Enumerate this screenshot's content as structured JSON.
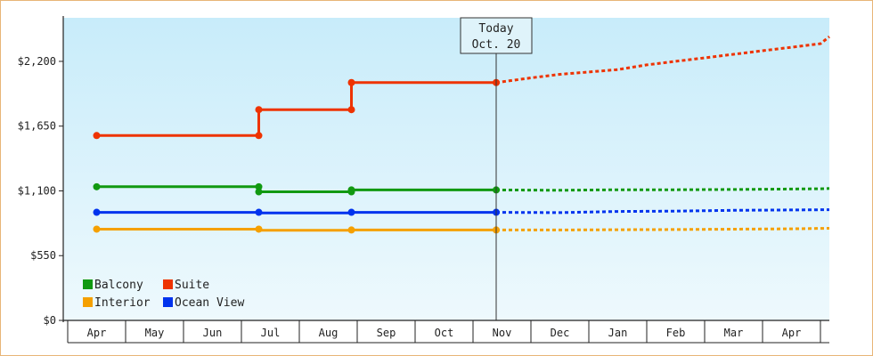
{
  "chart_data": {
    "type": "line",
    "x": [
      "Apr",
      "May",
      "Jun",
      "Jul",
      "Aug",
      "Sep",
      "Oct",
      "Nov",
      "Dec",
      "Jan",
      "Feb",
      "Mar",
      "Apr"
    ],
    "ylim": [
      0,
      2570
    ],
    "yticks": [
      "$0",
      "$550",
      "$1,100",
      "$1,650",
      "$2,200"
    ],
    "ytick_values": [
      0,
      550,
      1100,
      1650,
      2200
    ],
    "grid": false,
    "legend_position": "bottom-left",
    "today": {
      "line1": "Today",
      "line2": "Oct. 20",
      "x": 6.9
    },
    "series": [
      {
        "name": "Balcony",
        "color": "#119911",
        "actual": [
          [
            0,
            1135
          ],
          [
            2.8,
            1135
          ],
          [
            2.8,
            1092
          ],
          [
            4.4,
            1092
          ],
          [
            4.4,
            1108
          ],
          [
            6.9,
            1108
          ]
        ],
        "forecast": [
          [
            6.9,
            1108
          ],
          [
            8.0,
            1105
          ],
          [
            9.0,
            1110
          ],
          [
            10.0,
            1110
          ],
          [
            11.2,
            1113
          ],
          [
            12.5,
            1118
          ],
          [
            13.3,
            1120
          ]
        ],
        "markers": [
          [
            0,
            1135
          ],
          [
            2.8,
            1135
          ],
          [
            2.8,
            1092
          ],
          [
            4.4,
            1092
          ],
          [
            4.4,
            1108
          ],
          [
            6.9,
            1108
          ]
        ]
      },
      {
        "name": "Suite",
        "color": "#ee3300",
        "actual": [
          [
            0,
            1570
          ],
          [
            2.8,
            1570
          ],
          [
            2.8,
            1790
          ],
          [
            4.4,
            1790
          ],
          [
            4.4,
            2020
          ],
          [
            6.9,
            2020
          ]
        ],
        "forecast": [
          [
            6.9,
            2020
          ],
          [
            7.5,
            2060
          ],
          [
            8.0,
            2090
          ],
          [
            8.5,
            2110
          ],
          [
            9.0,
            2130
          ],
          [
            9.5,
            2170
          ],
          [
            10.0,
            2200
          ],
          [
            10.5,
            2230
          ],
          [
            11.0,
            2260
          ],
          [
            11.5,
            2290
          ],
          [
            12.0,
            2320
          ],
          [
            12.5,
            2350
          ],
          [
            13.3,
            2410
          ]
        ],
        "markers": [
          [
            0,
            1570
          ],
          [
            2.8,
            1570
          ],
          [
            2.8,
            1790
          ],
          [
            4.4,
            1790
          ],
          [
            4.4,
            2020
          ],
          [
            6.9,
            2020
          ]
        ]
      },
      {
        "name": "Interior",
        "color": "#f5a000",
        "actual": [
          [
            0,
            775
          ],
          [
            2.8,
            775
          ],
          [
            2.8,
            765
          ],
          [
            4.4,
            765
          ],
          [
            4.4,
            768
          ],
          [
            6.9,
            768
          ]
        ],
        "forecast": [
          [
            6.9,
            768
          ],
          [
            8.0,
            768
          ],
          [
            9.0,
            770
          ],
          [
            10.0,
            772
          ],
          [
            11.0,
            775
          ],
          [
            12.0,
            778
          ],
          [
            13.3,
            782
          ]
        ],
        "markers": [
          [
            0,
            775
          ],
          [
            2.8,
            775
          ],
          [
            4.4,
            768
          ],
          [
            6.9,
            768
          ]
        ]
      },
      {
        "name": "Ocean View",
        "color": "#0033ee",
        "actual": [
          [
            0,
            918
          ],
          [
            2.8,
            918
          ],
          [
            2.8,
            912
          ],
          [
            4.4,
            912
          ],
          [
            4.4,
            918
          ],
          [
            6.9,
            918
          ]
        ],
        "forecast": [
          [
            6.9,
            918
          ],
          [
            8.0,
            915
          ],
          [
            9.0,
            925
          ],
          [
            10.0,
            928
          ],
          [
            11.0,
            935
          ],
          [
            12.0,
            938
          ],
          [
            13.3,
            940
          ]
        ],
        "markers": [
          [
            0,
            918
          ],
          [
            2.8,
            918
          ],
          [
            4.4,
            918
          ],
          [
            6.9,
            918
          ]
        ]
      }
    ]
  }
}
